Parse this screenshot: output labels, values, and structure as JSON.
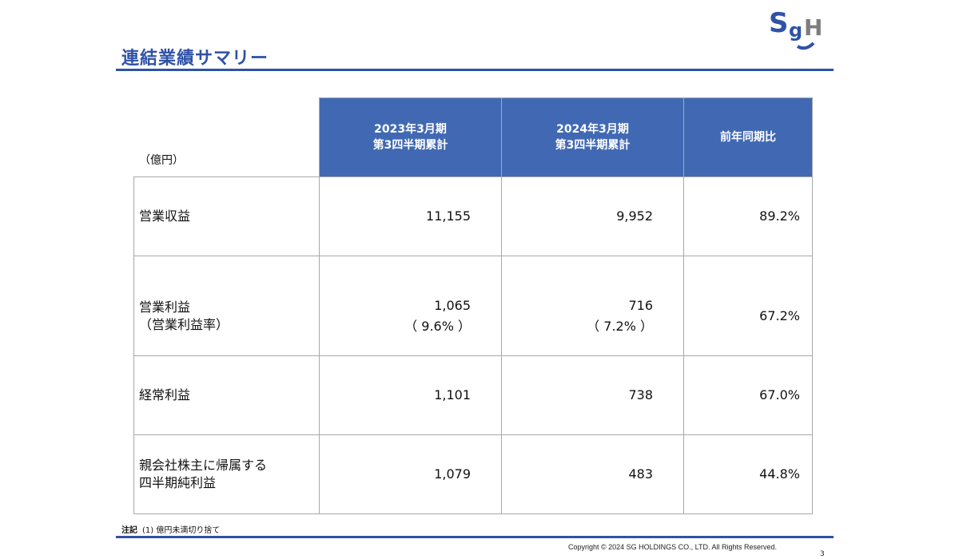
{
  "title": "連結業績サマリー",
  "logo": {
    "text": "SGH",
    "colors": {
      "primary": "#2f52a8"
    }
  },
  "unit": "（億円）",
  "table": {
    "headers": [
      {
        "line1": "2023年3月期",
        "line2": "第3四半期累計"
      },
      {
        "line1": "2024年3月期",
        "line2": "第3四半期累計"
      },
      {
        "line1": "前年同期比",
        "line2": ""
      }
    ],
    "rows": [
      {
        "label1": "営業収益",
        "label2": "",
        "v2023": "11,155",
        "v2023sub": "",
        "v2024": "9,952",
        "v2024sub": "",
        "yoy": "89.2%"
      },
      {
        "label1": "営業利益",
        "label2": "（営業利益率）",
        "v2023": "1,065",
        "v2023sub": "（ 9.6% ）",
        "v2024": "716",
        "v2024sub": "（ 7.2% ）",
        "yoy": "67.2%"
      },
      {
        "label1": "経常利益",
        "label2": "",
        "v2023": "1,101",
        "v2023sub": "",
        "v2024": "738",
        "v2024sub": "",
        "yoy": "67.0%"
      },
      {
        "label1": "親会社株主に帰属する",
        "label2": "四半期純利益",
        "v2023": "1,079",
        "v2023sub": "",
        "v2024": "483",
        "v2024sub": "",
        "yoy": "44.8%"
      }
    ]
  },
  "note": {
    "label": "注記",
    "text": "(1) 億円未満切り捨て"
  },
  "copyright": "Copyright © 2024 SG HOLDINGS CO., LTD.  All Rights Reserved.",
  "page_number": "3",
  "colors": {
    "accent": "#2f52a8",
    "header_fill": "#4169b3"
  }
}
